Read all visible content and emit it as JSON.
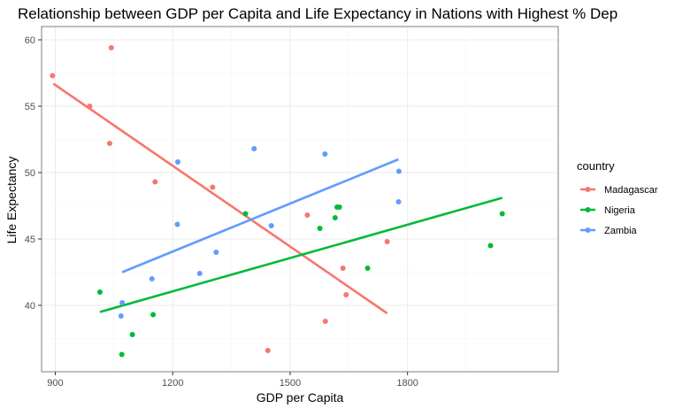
{
  "chart_data": {
    "type": "scatter",
    "title": "Relationship between GDP per Capita and Life Expectancy in Nations with Highest % Dep",
    "xlabel": "GDP per Capita",
    "ylabel": "Life Expectancy",
    "xlim": [
      865,
      2185
    ],
    "ylim": [
      35,
      61
    ],
    "xticks": [
      900,
      1200,
      1500,
      1800
    ],
    "yticks": [
      40,
      45,
      50,
      55,
      60
    ],
    "grid": true,
    "legend": {
      "title": "country",
      "position": "right"
    },
    "series": [
      {
        "name": "Madagascar",
        "color": "#F8766D",
        "points": [
          {
            "x": 893,
            "y": 57.3
          },
          {
            "x": 988,
            "y": 55.0
          },
          {
            "x": 1039,
            "y": 52.2
          },
          {
            "x": 1043,
            "y": 59.4
          },
          {
            "x": 1155,
            "y": 49.3
          },
          {
            "x": 1302,
            "y": 48.9
          },
          {
            "x": 1443,
            "y": 36.6
          },
          {
            "x": 1544,
            "y": 46.8
          },
          {
            "x": 1590,
            "y": 38.8
          },
          {
            "x": 1635,
            "y": 42.8
          },
          {
            "x": 1643,
            "y": 40.8
          },
          {
            "x": 1748,
            "y": 44.8
          }
        ],
        "trend": {
          "x": [
            895,
            1748
          ],
          "y": [
            56.7,
            39.4
          ]
        }
      },
      {
        "name": "Nigeria",
        "color": "#00BA38",
        "points": [
          {
            "x": 1014,
            "y": 41.0
          },
          {
            "x": 1070,
            "y": 36.3
          },
          {
            "x": 1097,
            "y": 37.8
          },
          {
            "x": 1150,
            "y": 39.3
          },
          {
            "x": 1386,
            "y": 46.9
          },
          {
            "x": 1576,
            "y": 45.8
          },
          {
            "x": 1615,
            "y": 46.6
          },
          {
            "x": 1620,
            "y": 47.4
          },
          {
            "x": 1626,
            "y": 47.4
          },
          {
            "x": 1698,
            "y": 42.8
          },
          {
            "x": 2012,
            "y": 44.5
          },
          {
            "x": 2042,
            "y": 46.9
          }
        ],
        "trend": {
          "x": [
            1014,
            2042
          ],
          "y": [
            39.5,
            48.1
          ]
        }
      },
      {
        "name": "Zambia",
        "color": "#619CFF",
        "points": [
          {
            "x": 1068,
            "y": 39.2
          },
          {
            "x": 1071,
            "y": 40.2
          },
          {
            "x": 1147,
            "y": 42.0
          },
          {
            "x": 1213,
            "y": 50.8
          },
          {
            "x": 1212,
            "y": 46.1
          },
          {
            "x": 1269,
            "y": 42.4
          },
          {
            "x": 1311,
            "y": 44.0
          },
          {
            "x": 1408,
            "y": 51.8
          },
          {
            "x": 1452,
            "y": 46.0
          },
          {
            "x": 1589,
            "y": 51.4
          },
          {
            "x": 1778,
            "y": 50.1
          },
          {
            "x": 1777,
            "y": 47.8
          }
        ],
        "trend": {
          "x": [
            1071,
            1777
          ],
          "y": [
            42.5,
            51.0
          ]
        }
      }
    ]
  }
}
